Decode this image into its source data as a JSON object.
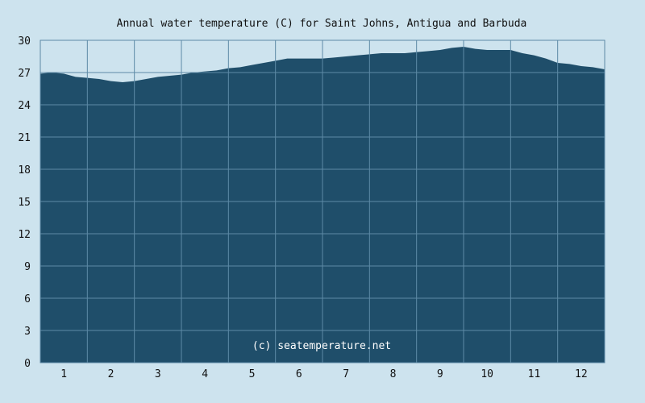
{
  "chart_data": {
    "type": "area",
    "title": "Annual water temperature (C) for Saint Johns, Antigua and Barbuda",
    "xlabel": "",
    "ylabel": "",
    "categories": [
      "1",
      "2",
      "3",
      "4",
      "5",
      "6",
      "7",
      "8",
      "9",
      "10",
      "11",
      "12"
    ],
    "xlim": [
      0.5,
      12.5
    ],
    "ylim": [
      0,
      30
    ],
    "yticks": [
      "0",
      "3",
      "6",
      "9",
      "12",
      "15",
      "18",
      "21",
      "24",
      "27",
      "30"
    ],
    "grid": true,
    "legend": "none",
    "watermark": "(c) seatemperature.net",
    "colors": {
      "background": "#cde3ee",
      "fill": "#1f4e6a",
      "grid": "#5d8aa6",
      "frame": "#5d8aa6"
    },
    "series": [
      {
        "x": [
          0.5,
          0.75,
          1.0,
          1.25,
          1.5,
          1.75,
          2.0,
          2.25,
          2.5,
          2.75,
          3.0,
          3.25,
          3.5,
          3.75,
          4.0,
          4.25,
          4.5,
          4.75,
          5.0,
          5.25,
          5.5,
          5.75,
          6.0,
          6.25,
          6.5,
          6.75,
          7.0,
          7.25,
          7.5,
          7.75,
          8.0,
          8.25,
          8.5,
          8.75,
          9.0,
          9.25,
          9.5,
          9.75,
          10.0,
          10.25,
          10.5,
          10.75,
          11.0,
          11.25,
          11.5,
          11.75,
          12.0,
          12.25,
          12.5
        ],
        "values": [
          26.9,
          27.0,
          26.9,
          26.6,
          26.5,
          26.4,
          26.2,
          26.1,
          26.2,
          26.4,
          26.6,
          26.7,
          26.8,
          27.0,
          27.1,
          27.2,
          27.4,
          27.5,
          27.7,
          27.9,
          28.1,
          28.3,
          28.3,
          28.3,
          28.3,
          28.4,
          28.5,
          28.6,
          28.7,
          28.8,
          28.8,
          28.8,
          28.9,
          29.0,
          29.1,
          29.3,
          29.4,
          29.2,
          29.1,
          29.1,
          29.1,
          28.8,
          28.6,
          28.3,
          27.9,
          27.8,
          27.6,
          27.5,
          27.3
        ]
      }
    ]
  }
}
